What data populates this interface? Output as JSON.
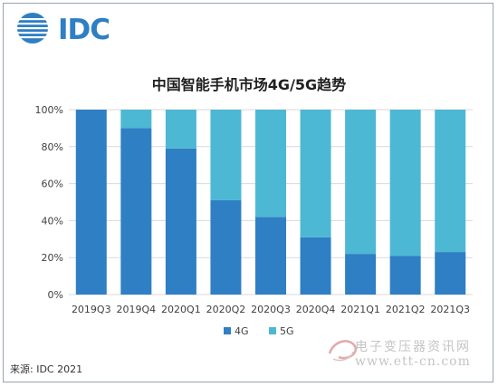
{
  "brand": {
    "logo_text": "IDC",
    "logo_color": "#2e7fc4"
  },
  "source_note": "来源: IDC 2021",
  "watermark": {
    "text": "电子变压器资讯网",
    "url": "www.ett-cn.com"
  },
  "chart_data": {
    "type": "bar",
    "stacked": true,
    "title": "中国智能手机市场4G/5G趋势",
    "xlabel": "",
    "ylabel": "",
    "ylim": [
      0,
      100
    ],
    "yticks": [
      "0%",
      "20%",
      "40%",
      "60%",
      "80%",
      "100%"
    ],
    "categories": [
      "2019Q3",
      "2019Q4",
      "2020Q1",
      "2020Q2",
      "2020Q3",
      "2020Q4",
      "2021Q1",
      "2021Q2",
      "2021Q3"
    ],
    "series": [
      {
        "name": "4G",
        "color": "#2e7fc4",
        "values": [
          100,
          90,
          79,
          51,
          42,
          31,
          22,
          21,
          23
        ]
      },
      {
        "name": "5G",
        "color": "#4db8d4",
        "values": [
          0,
          10,
          21,
          49,
          58,
          69,
          78,
          79,
          77
        ]
      }
    ],
    "legend_position": "bottom-center",
    "grid": true
  }
}
